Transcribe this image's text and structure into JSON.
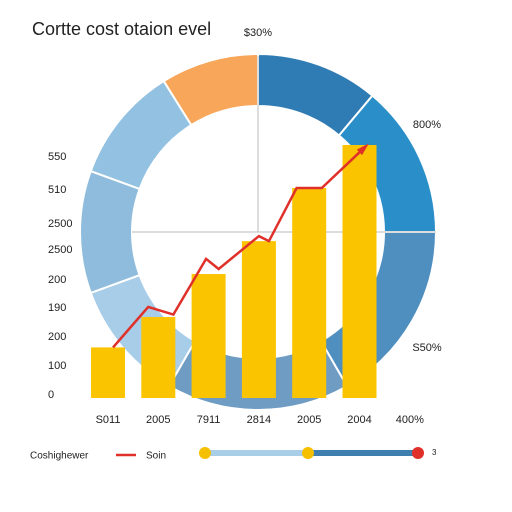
{
  "chart_data": {
    "type": "bar",
    "title": "Cortte cost otaion evel",
    "annotations": [
      "$30%",
      "800%",
      "S50%"
    ],
    "categories": [
      "S011",
      "2005",
      "7911",
      "2814",
      "2005",
      "2004",
      "400%"
    ],
    "y_axis_labels": [
      "550",
      "510",
      "2500",
      "2500",
      "200",
      "190",
      "200",
      "100",
      "0"
    ],
    "ylim": [
      0,
      100
    ],
    "series": [
      {
        "name": "Coshighewer",
        "color": "#fbc400",
        "values": [
          20,
          32,
          49,
          62,
          83,
          100,
          null
        ]
      },
      {
        "name": "Soin",
        "color": "#e0302a",
        "type": "line",
        "x": [
          0.1,
          0.8,
          1.3,
          1.95,
          2.2,
          3.0,
          3.2,
          3.75,
          4.25,
          5.1
        ],
        "values": [
          20,
          36,
          33,
          55,
          51,
          64,
          62,
          83,
          83,
          99
        ]
      }
    ],
    "donut": {
      "values": [
        32,
        40,
        50,
        60,
        60,
        40,
        40,
        38
      ],
      "colors": [
        "#f7a65a",
        "#2f7bb3",
        "#2a8fc8",
        "#4f8fbf",
        "#6f9cc3",
        "#a8cde8",
        "#8fbcdc",
        "#93c1e1"
      ]
    },
    "slider_label": "3"
  }
}
